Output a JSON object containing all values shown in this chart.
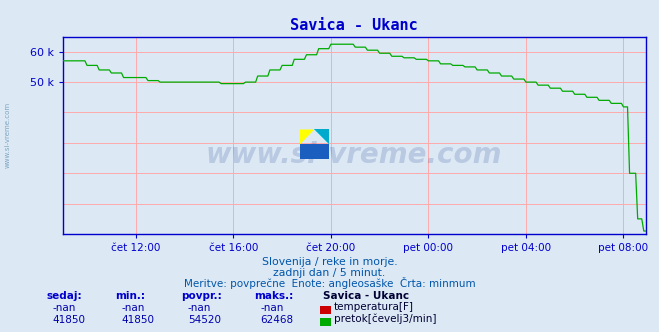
{
  "title": "Savica - Ukanc",
  "title_color": "#0000cc",
  "bg_color": "#dce9f5",
  "grid_color": "#ffaaaa",
  "axis_color": "#0000cc",
  "line_color_flow": "#00aa00",
  "line_color_temp": "#cc0000",
  "ylim_max": 65000,
  "ytick_vals": [
    50000,
    60000
  ],
  "ytick_labels": [
    "50 k",
    "60 k"
  ],
  "xlabel_ticks": [
    "čet 12:00",
    "čet 16:00",
    "čet 20:00",
    "pet 00:00",
    "pet 04:00",
    "pet 08:00"
  ],
  "watermark": "www.si-vreme.com",
  "watermark_color": "#1a3a8a",
  "watermark_alpha": 0.18,
  "subtitle1": "Slovenija / reke in morje.",
  "subtitle2": "zadnji dan / 5 minut.",
  "subtitle3": "Meritve: povprečne  Enote: angleosaške  Črta: minmum",
  "subtitle_color": "#0055aa",
  "legend_title": "Savica - Ukanc",
  "table_headers": [
    "sedaj:",
    "min.:",
    "povpr.:",
    "maks.:"
  ],
  "table_row1": [
    "-nan",
    "-nan",
    "-nan",
    "-nan"
  ],
  "table_row2": [
    "41850",
    "41850",
    "54520",
    "62468"
  ],
  "side_text": "www.si-vreme.com",
  "n_points": 288
}
